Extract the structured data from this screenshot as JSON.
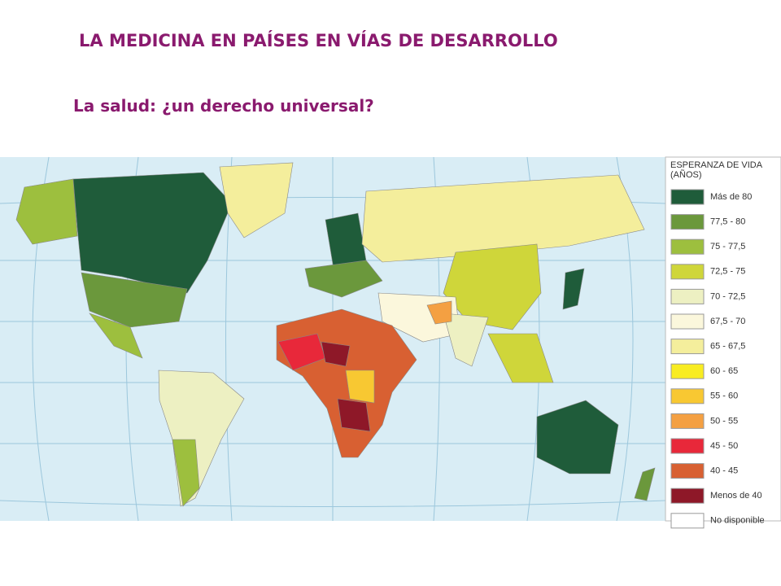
{
  "header": {
    "title": "LA MEDICINA EN PAÍSES EN VÍAS DE DESARROLLO",
    "subtitle": "La salud: ¿un derecho universal?"
  },
  "legend": {
    "title": [
      "ESPERANZA DE VIDA",
      "(AÑOS)"
    ],
    "items": [
      {
        "label": "Más de 80",
        "color": "#1f5c3a"
      },
      {
        "label": "77,5 - 80",
        "color": "#6b983c"
      },
      {
        "label": "75 - 77,5",
        "color": "#9dbf3e"
      },
      {
        "label": "72,5 - 75",
        "color": "#cfd63a"
      },
      {
        "label": "70 - 72,5",
        "color": "#edf0c2"
      },
      {
        "label": "67,5 - 70",
        "color": "#fbf7dc"
      },
      {
        "label": "65 - 67,5",
        "color": "#f4ee9c"
      },
      {
        "label": "60 - 65",
        "color": "#f8ec22"
      },
      {
        "label": "55 - 60",
        "color": "#f8c832"
      },
      {
        "label": "50 - 55",
        "color": "#f4a042"
      },
      {
        "label": "45 - 50",
        "color": "#e8283a"
      },
      {
        "label": "40 - 45",
        "color": "#d86032"
      },
      {
        "label": "Menos de 40",
        "color": "#8e1828"
      },
      {
        "label": "No disponible",
        "color": "#ffffff"
      }
    ]
  }
}
